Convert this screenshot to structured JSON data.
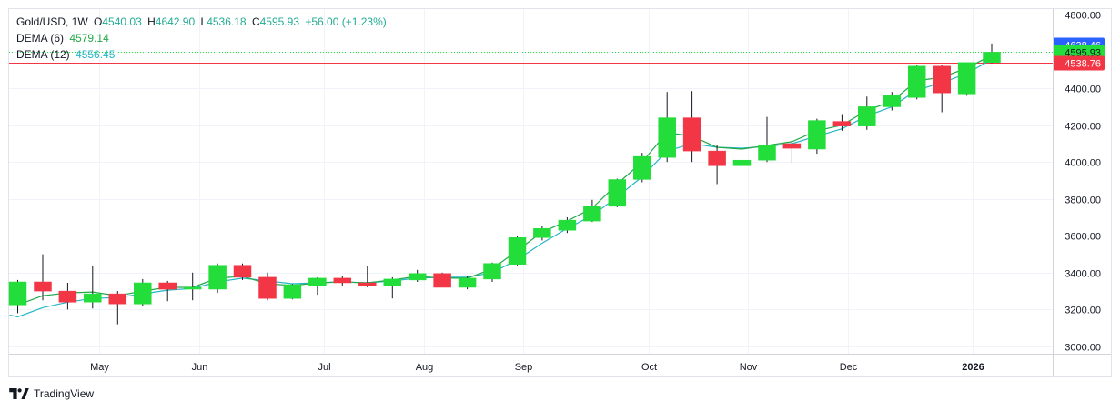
{
  "header": {
    "symbol": "Gold/USD, 1W",
    "o_label": "O",
    "o": "4540.03",
    "h_label": "H",
    "h": "4642.90",
    "l_label": "L",
    "l": "4536.18",
    "c_label": "C",
    "c": "4595.93",
    "change": "+56.00 (+1.23%)"
  },
  "indicators": [
    {
      "label": "DEMA (6)",
      "value": "4579.14",
      "color": "#22a84a"
    },
    {
      "label": "DEMA (12)",
      "value": "4556.45",
      "color": "#26b6c6"
    }
  ],
  "footer": {
    "brand": "TradingView"
  },
  "colors": {
    "up": "#22dd3a",
    "down": "#f23645",
    "dema6": "#22a84a",
    "dema12": "#26b6c6"
  },
  "chart_data": {
    "type": "candlestick",
    "title": "Gold/USD, 1W",
    "y_ticks": [
      "4800.00",
      "4600.00",
      "4400.00",
      "4200.00",
      "4000.00",
      "3800.00",
      "3600.00",
      "3400.00",
      "3200.00",
      "3000.00"
    ],
    "ylim": [
      2960,
      4830
    ],
    "x_labels": [
      {
        "label": "May",
        "week": 3.25
      },
      {
        "label": "Jun",
        "week": 7.25
      },
      {
        "label": "Jul",
        "week": 12.25
      },
      {
        "label": "Aug",
        "week": 16.25
      },
      {
        "label": "Sep",
        "week": 20.25
      },
      {
        "label": "Oct",
        "week": 25.25
      },
      {
        "label": "Nov",
        "week": 29.25
      },
      {
        "label": "Dec",
        "week": 33.25
      },
      {
        "label": "2026",
        "week": 38.25
      }
    ],
    "price_labels": [
      {
        "value": 4638.46,
        "text": "4638.46",
        "kind": "blue"
      },
      {
        "value": 4595.93,
        "text": "4595.93",
        "kind": "up"
      },
      {
        "value": 4538.76,
        "text": "4538.76",
        "kind": "down"
      }
    ],
    "candles": [
      {
        "o": 3225,
        "h": 3360,
        "l": 3180,
        "c": 3350
      },
      {
        "o": 3350,
        "h": 3500,
        "l": 3250,
        "c": 3300
      },
      {
        "o": 3300,
        "h": 3345,
        "l": 3200,
        "c": 3240
      },
      {
        "o": 3240,
        "h": 3435,
        "l": 3205,
        "c": 3285
      },
      {
        "o": 3285,
        "h": 3300,
        "l": 3120,
        "c": 3230
      },
      {
        "o": 3230,
        "h": 3365,
        "l": 3220,
        "c": 3345
      },
      {
        "o": 3345,
        "h": 3355,
        "l": 3245,
        "c": 3310
      },
      {
        "o": 3310,
        "h": 3400,
        "l": 3250,
        "c": 3320
      },
      {
        "o": 3310,
        "h": 3450,
        "l": 3290,
        "c": 3440
      },
      {
        "o": 3440,
        "h": 3450,
        "l": 3360,
        "c": 3375
      },
      {
        "o": 3375,
        "h": 3400,
        "l": 3250,
        "c": 3260
      },
      {
        "o": 3260,
        "h": 3340,
        "l": 3255,
        "c": 3335
      },
      {
        "o": 3330,
        "h": 3375,
        "l": 3280,
        "c": 3370
      },
      {
        "o": 3370,
        "h": 3380,
        "l": 3325,
        "c": 3345
      },
      {
        "o": 3345,
        "h": 3435,
        "l": 3320,
        "c": 3330
      },
      {
        "o": 3330,
        "h": 3375,
        "l": 3260,
        "c": 3365
      },
      {
        "o": 3360,
        "h": 3415,
        "l": 3350,
        "c": 3395
      },
      {
        "o": 3395,
        "h": 3400,
        "l": 3320,
        "c": 3320
      },
      {
        "o": 3320,
        "h": 3380,
        "l": 3310,
        "c": 3370
      },
      {
        "o": 3365,
        "h": 3455,
        "l": 3350,
        "c": 3450
      },
      {
        "o": 3445,
        "h": 3600,
        "l": 3440,
        "c": 3590
      },
      {
        "o": 3590,
        "h": 3655,
        "l": 3575,
        "c": 3640
      },
      {
        "o": 3630,
        "h": 3700,
        "l": 3615,
        "c": 3685
      },
      {
        "o": 3680,
        "h": 3795,
        "l": 3675,
        "c": 3760
      },
      {
        "o": 3760,
        "h": 3910,
        "l": 3755,
        "c": 3905
      },
      {
        "o": 3905,
        "h": 4050,
        "l": 3890,
        "c": 4030
      },
      {
        "o": 4025,
        "h": 4380,
        "l": 4000,
        "c": 4240
      },
      {
        "o": 4240,
        "h": 4385,
        "l": 4000,
        "c": 4060
      },
      {
        "o": 4060,
        "h": 4090,
        "l": 3880,
        "c": 3980
      },
      {
        "o": 3980,
        "h": 4035,
        "l": 3935,
        "c": 4010
      },
      {
        "o": 4010,
        "h": 4245,
        "l": 4000,
        "c": 4090
      },
      {
        "o": 4100,
        "h": 4115,
        "l": 3995,
        "c": 4075
      },
      {
        "o": 4070,
        "h": 4235,
        "l": 4045,
        "c": 4225
      },
      {
        "o": 4220,
        "h": 4260,
        "l": 4170,
        "c": 4195
      },
      {
        "o": 4195,
        "h": 4355,
        "l": 4175,
        "c": 4300
      },
      {
        "o": 4300,
        "h": 4380,
        "l": 4280,
        "c": 4360
      },
      {
        "o": 4350,
        "h": 4525,
        "l": 4340,
        "c": 4520
      },
      {
        "o": 4520,
        "h": 4525,
        "l": 4270,
        "c": 4375
      },
      {
        "o": 4370,
        "h": 4540,
        "l": 4360,
        "c": 4540
      },
      {
        "o": 4540.03,
        "h": 4642.9,
        "l": 4536.18,
        "c": 4595.93
      }
    ],
    "dema6": [
      3225,
      3275,
      3290,
      3295,
      3275,
      3300,
      3320,
      3320,
      3370,
      3380,
      3340,
      3330,
      3345,
      3350,
      3345,
      3360,
      3380,
      3370,
      3370,
      3420,
      3520,
      3620,
      3680,
      3750,
      3880,
      4000,
      4160,
      4140,
      4080,
      4070,
      4090,
      4110,
      4170,
      4200,
      4280,
      4330,
      4440,
      4460,
      4510,
      4579.14
    ],
    "dema12": [
      3160,
      3210,
      3240,
      3260,
      3265,
      3285,
      3305,
      3315,
      3350,
      3370,
      3355,
      3340,
      3345,
      3350,
      3345,
      3355,
      3370,
      3375,
      3375,
      3400,
      3470,
      3560,
      3640,
      3710,
      3810,
      3920,
      4060,
      4100,
      4080,
      4075,
      4085,
      4100,
      4140,
      4180,
      4250,
      4300,
      4390,
      4430,
      4480,
      4556.45
    ]
  }
}
